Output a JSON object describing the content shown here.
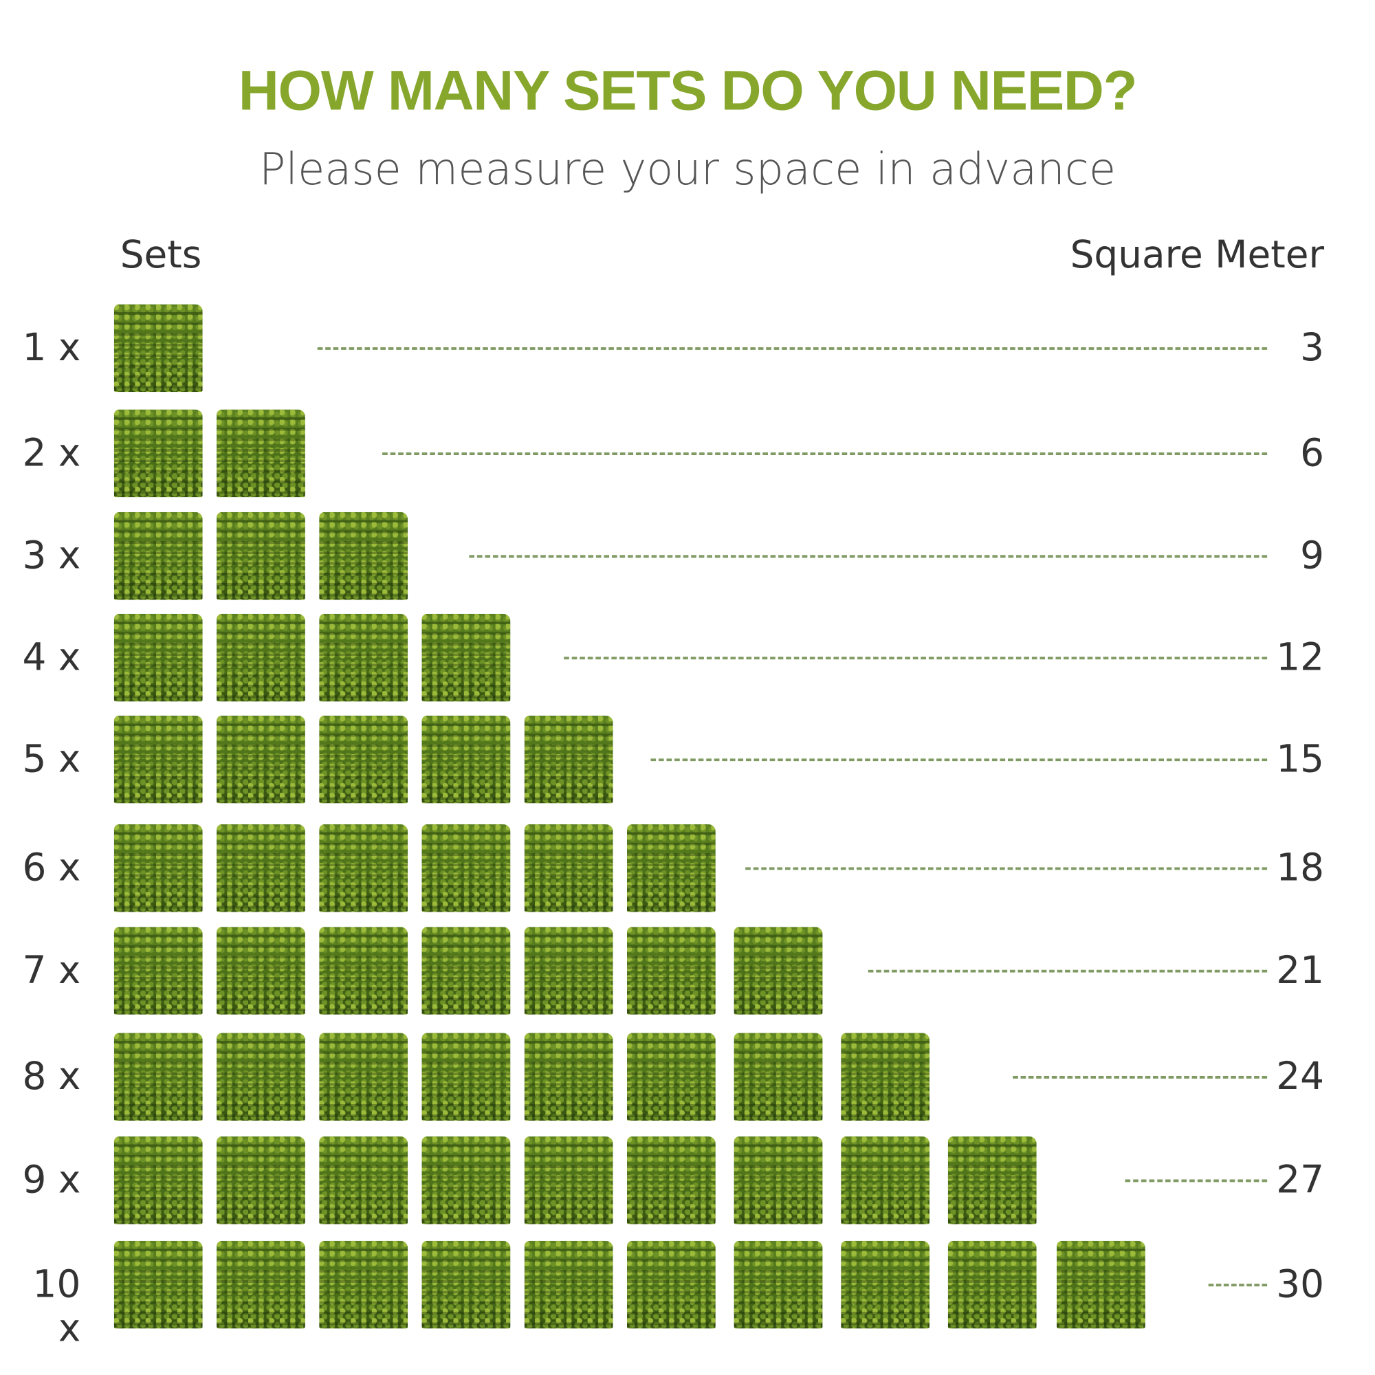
{
  "title": "HOW MANY SETS DO YOU NEED?",
  "subtitle": "Please measure your space in advance",
  "headers": {
    "sets": "Sets",
    "area": "Square Meter"
  },
  "colors": {
    "title": "#86a62c",
    "dash": "#7f9a62",
    "panel": "#4a6e18"
  },
  "panel_icon": "green-hedge-panel",
  "rows": [
    {
      "label": "1 x",
      "sets": 1,
      "value": "3"
    },
    {
      "label": "2 x",
      "sets": 2,
      "value": "6"
    },
    {
      "label": "3 x",
      "sets": 3,
      "value": "9"
    },
    {
      "label": "4 x",
      "sets": 4,
      "value": "12"
    },
    {
      "label": "5 x",
      "sets": 5,
      "value": "15"
    },
    {
      "label": "6 x",
      "sets": 6,
      "value": "18"
    },
    {
      "label": "7 x",
      "sets": 7,
      "value": "21"
    },
    {
      "label": "8 x",
      "sets": 8,
      "value": "24"
    },
    {
      "label": "9 x",
      "sets": 9,
      "value": "27"
    },
    {
      "label": "10 x",
      "sets": 10,
      "value": "30"
    }
  ]
}
